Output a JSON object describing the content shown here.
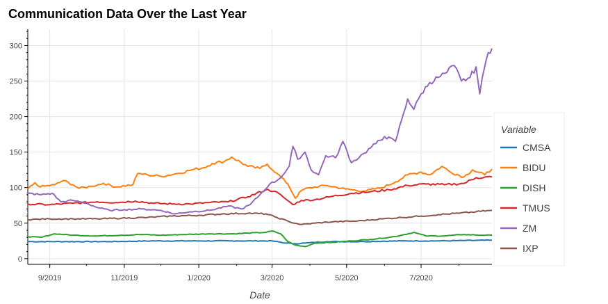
{
  "chart_data": {
    "type": "line",
    "title": "Communication Data Over the Last Year",
    "xlabel": "Date",
    "ylabel": "",
    "ylim": [
      -8,
      323
    ],
    "xlim": [
      "2019-08-14",
      "2020-08-28"
    ],
    "yticks": [
      0,
      50,
      100,
      150,
      200,
      250,
      300
    ],
    "xticks": [
      {
        "date": "2019-09-01",
        "label": "9/2019"
      },
      {
        "date": "2019-11-01",
        "label": "11/2019"
      },
      {
        "date": "2020-01-01",
        "label": "1/2020"
      },
      {
        "date": "2020-03-01",
        "label": "3/2020"
      },
      {
        "date": "2020-05-01",
        "label": "5/2020"
      },
      {
        "date": "2020-07-01",
        "label": "7/2020"
      }
    ],
    "grid": true,
    "legend": {
      "title": "Variable",
      "placement": "right"
    },
    "series": [
      {
        "name": "CMSA",
        "color": "#1f77b4",
        "points": [
          [
            "2019-08-14",
            24
          ],
          [
            "2019-09-15",
            24
          ],
          [
            "2019-10-20",
            24
          ],
          [
            "2019-11-25",
            25
          ],
          [
            "2019-12-30",
            25
          ],
          [
            "2020-02-01",
            25
          ],
          [
            "2020-03-01",
            25
          ],
          [
            "2020-03-12",
            22
          ],
          [
            "2020-03-20",
            21
          ],
          [
            "2020-03-28",
            22
          ],
          [
            "2020-04-15",
            24
          ],
          [
            "2020-05-15",
            24
          ],
          [
            "2020-06-15",
            25
          ],
          [
            "2020-07-15",
            25
          ],
          [
            "2020-08-28",
            26
          ]
        ]
      },
      {
        "name": "BIDU",
        "color": "#ff7f0e",
        "points": [
          [
            "2019-08-14",
            98
          ],
          [
            "2019-08-20",
            107
          ],
          [
            "2019-08-24",
            101
          ],
          [
            "2019-09-05",
            104
          ],
          [
            "2019-09-12",
            110
          ],
          [
            "2019-09-20",
            104
          ],
          [
            "2019-09-25",
            99
          ],
          [
            "2019-10-05",
            102
          ],
          [
            "2019-10-15",
            106
          ],
          [
            "2019-10-25",
            101
          ],
          [
            "2019-11-08",
            104
          ],
          [
            "2019-11-12",
            120
          ],
          [
            "2019-11-20",
            118
          ],
          [
            "2019-12-01",
            116
          ],
          [
            "2019-12-15",
            120
          ],
          [
            "2019-12-26",
            125
          ],
          [
            "2020-01-05",
            128
          ],
          [
            "2020-01-12",
            134
          ],
          [
            "2020-01-22",
            137
          ],
          [
            "2020-01-28",
            143
          ],
          [
            "2020-02-10",
            130
          ],
          [
            "2020-02-20",
            127
          ],
          [
            "2020-02-26",
            133
          ],
          [
            "2020-03-05",
            120
          ],
          [
            "2020-03-14",
            105
          ],
          [
            "2020-03-20",
            85
          ],
          [
            "2020-03-25",
            96
          ],
          [
            "2020-04-01",
            100
          ],
          [
            "2020-04-15",
            103
          ],
          [
            "2020-04-30",
            98
          ],
          [
            "2020-05-15",
            95
          ],
          [
            "2020-05-30",
            100
          ],
          [
            "2020-06-10",
            108
          ],
          [
            "2020-06-20",
            118
          ],
          [
            "2020-07-01",
            122
          ],
          [
            "2020-07-08",
            118
          ],
          [
            "2020-07-18",
            130
          ],
          [
            "2020-07-25",
            122
          ],
          [
            "2020-08-05",
            115
          ],
          [
            "2020-08-12",
            125
          ],
          [
            "2020-08-22",
            118
          ],
          [
            "2020-08-28",
            126
          ]
        ]
      },
      {
        "name": "DISH",
        "color": "#2ca02c",
        "points": [
          [
            "2019-08-14",
            31
          ],
          [
            "2019-08-25",
            30
          ],
          [
            "2019-09-05",
            35
          ],
          [
            "2019-09-20",
            33
          ],
          [
            "2019-10-10",
            32
          ],
          [
            "2019-10-30",
            33
          ],
          [
            "2019-11-15",
            34
          ],
          [
            "2019-12-01",
            33
          ],
          [
            "2019-12-20",
            34
          ],
          [
            "2020-01-10",
            35
          ],
          [
            "2020-01-30",
            35
          ],
          [
            "2020-02-10",
            36
          ],
          [
            "2020-02-25",
            37
          ],
          [
            "2020-03-01",
            39
          ],
          [
            "2020-03-08",
            35
          ],
          [
            "2020-03-14",
            24
          ],
          [
            "2020-03-20",
            19
          ],
          [
            "2020-03-28",
            17
          ],
          [
            "2020-04-05",
            22
          ],
          [
            "2020-04-20",
            23
          ],
          [
            "2020-05-05",
            25
          ],
          [
            "2020-05-20",
            27
          ],
          [
            "2020-06-05",
            30
          ],
          [
            "2020-06-15",
            33
          ],
          [
            "2020-06-25",
            37
          ],
          [
            "2020-07-05",
            32
          ],
          [
            "2020-07-20",
            32
          ],
          [
            "2020-08-05",
            34
          ],
          [
            "2020-08-20",
            33
          ],
          [
            "2020-08-28",
            33
          ]
        ]
      },
      {
        "name": "TMUS",
        "color": "#d62728",
        "points": [
          [
            "2019-08-14",
            77
          ],
          [
            "2019-09-01",
            76
          ],
          [
            "2019-09-20",
            78
          ],
          [
            "2019-10-10",
            80
          ],
          [
            "2019-10-25",
            79
          ],
          [
            "2019-11-10",
            81
          ],
          [
            "2019-11-25",
            78
          ],
          [
            "2019-12-10",
            77
          ],
          [
            "2019-12-25",
            77
          ],
          [
            "2020-01-10",
            79
          ],
          [
            "2020-01-25",
            80
          ],
          [
            "2020-02-10",
            87
          ],
          [
            "2020-02-25",
            97
          ],
          [
            "2020-03-03",
            95
          ],
          [
            "2020-03-10",
            87
          ],
          [
            "2020-03-18",
            76
          ],
          [
            "2020-03-25",
            82
          ],
          [
            "2020-04-05",
            83
          ],
          [
            "2020-04-20",
            88
          ],
          [
            "2020-05-05",
            92
          ],
          [
            "2020-05-20",
            94
          ],
          [
            "2020-06-05",
            97
          ],
          [
            "2020-06-20",
            103
          ],
          [
            "2020-07-05",
            105
          ],
          [
            "2020-07-20",
            104
          ],
          [
            "2020-08-05",
            106
          ],
          [
            "2020-08-15",
            114
          ],
          [
            "2020-08-28",
            115
          ]
        ]
      },
      {
        "name": "ZM",
        "color": "#9467bd",
        "points": [
          [
            "2019-08-14",
            92
          ],
          [
            "2019-08-25",
            90
          ],
          [
            "2019-09-03",
            92
          ],
          [
            "2019-09-10",
            80
          ],
          [
            "2019-09-20",
            82
          ],
          [
            "2019-10-01",
            78
          ],
          [
            "2019-10-10",
            72
          ],
          [
            "2019-10-20",
            68
          ],
          [
            "2019-11-01",
            69
          ],
          [
            "2019-11-15",
            70
          ],
          [
            "2019-12-01",
            68
          ],
          [
            "2019-12-12",
            63
          ],
          [
            "2019-12-25",
            66
          ],
          [
            "2020-01-10",
            68
          ],
          [
            "2020-01-25",
            74
          ],
          [
            "2020-02-05",
            70
          ],
          [
            "2020-02-12",
            76
          ],
          [
            "2020-02-20",
            90
          ],
          [
            "2020-02-28",
            105
          ],
          [
            "2020-03-05",
            110
          ],
          [
            "2020-03-10",
            118
          ],
          [
            "2020-03-15",
            130
          ],
          [
            "2020-03-18",
            158
          ],
          [
            "2020-03-22",
            140
          ],
          [
            "2020-03-28",
            150
          ],
          [
            "2020-04-02",
            125
          ],
          [
            "2020-04-08",
            118
          ],
          [
            "2020-04-14",
            145
          ],
          [
            "2020-04-22",
            142
          ],
          [
            "2020-04-28",
            165
          ],
          [
            "2020-05-05",
            135
          ],
          [
            "2020-05-15",
            148
          ],
          [
            "2020-05-25",
            162
          ],
          [
            "2020-06-01",
            172
          ],
          [
            "2020-06-10",
            165
          ],
          [
            "2020-06-15",
            195
          ],
          [
            "2020-06-20",
            225
          ],
          [
            "2020-06-25",
            210
          ],
          [
            "2020-07-01",
            232
          ],
          [
            "2020-07-08",
            248
          ],
          [
            "2020-07-15",
            255
          ],
          [
            "2020-07-22",
            262
          ],
          [
            "2020-07-28",
            272
          ],
          [
            "2020-08-03",
            250
          ],
          [
            "2020-08-10",
            255
          ],
          [
            "2020-08-15",
            270
          ],
          [
            "2020-08-18",
            232
          ],
          [
            "2020-08-22",
            270
          ],
          [
            "2020-08-25",
            290
          ],
          [
            "2020-08-28",
            296
          ]
        ]
      },
      {
        "name": "IXP",
        "color": "#8c564b",
        "points": [
          [
            "2019-08-14",
            55
          ],
          [
            "2019-09-01",
            56
          ],
          [
            "2019-09-20",
            56
          ],
          [
            "2019-10-10",
            56
          ],
          [
            "2019-10-30",
            57
          ],
          [
            "2019-11-20",
            58
          ],
          [
            "2019-12-10",
            60
          ],
          [
            "2020-01-01",
            61
          ],
          [
            "2020-01-20",
            63
          ],
          [
            "2020-02-10",
            64
          ],
          [
            "2020-02-25",
            63
          ],
          [
            "2020-03-05",
            58
          ],
          [
            "2020-03-15",
            52
          ],
          [
            "2020-03-25",
            48
          ],
          [
            "2020-04-05",
            50
          ],
          [
            "2020-04-20",
            52
          ],
          [
            "2020-05-10",
            53
          ],
          [
            "2020-05-30",
            56
          ],
          [
            "2020-06-15",
            58
          ],
          [
            "2020-07-01",
            60
          ],
          [
            "2020-07-15",
            62
          ],
          [
            "2020-08-01",
            64
          ],
          [
            "2020-08-15",
            66
          ],
          [
            "2020-08-28",
            68
          ]
        ]
      }
    ]
  }
}
